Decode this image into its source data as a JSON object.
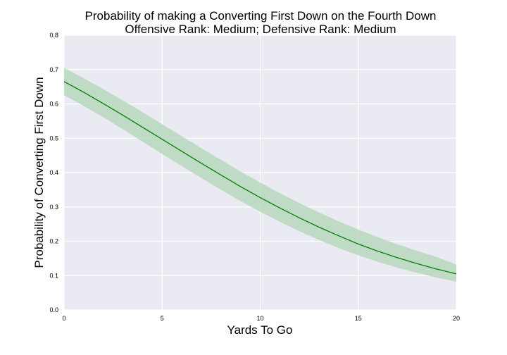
{
  "chart_data": {
    "type": "line",
    "title_lines": [
      "Probability of making a Converting First Down on the Fourth Down",
      "Offensive Rank: Medium; Defensive Rank: Medium"
    ],
    "xlabel": "Yards To Go",
    "ylabel": "Probability of Converting First Down",
    "xlim": [
      0,
      20
    ],
    "ylim": [
      0,
      0.8
    ],
    "x_ticks": [
      0,
      5,
      10,
      15,
      20
    ],
    "x_tick_labels": [
      "0",
      "5",
      "10",
      "15",
      "20"
    ],
    "y_ticks": [
      0.0,
      0.1,
      0.2,
      0.3,
      0.4,
      0.5,
      0.6,
      0.7,
      0.8
    ],
    "y_tick_labels": [
      "0.0",
      "0.1",
      "0.2",
      "0.3",
      "0.4",
      "0.5",
      "0.6",
      "0.7",
      "0.8"
    ],
    "grid": true,
    "series": [
      {
        "x": [
          0,
          1,
          2,
          3,
          4,
          5,
          6,
          7,
          8,
          9,
          10,
          11,
          12,
          13,
          14,
          15,
          16,
          17,
          18,
          19,
          20
        ],
        "y": [
          0.665,
          0.634,
          0.601,
          0.567,
          0.532,
          0.497,
          0.462,
          0.427,
          0.393,
          0.359,
          0.327,
          0.297,
          0.268,
          0.241,
          0.216,
          0.192,
          0.171,
          0.152,
          0.135,
          0.119,
          0.105
        ],
        "lower": [
          0.625,
          0.594,
          0.561,
          0.526,
          0.49,
          0.454,
          0.419,
          0.384,
          0.35,
          0.317,
          0.286,
          0.257,
          0.229,
          0.204,
          0.18,
          0.159,
          0.14,
          0.123,
          0.108,
          0.094,
          0.082
        ],
        "upper": [
          0.705,
          0.675,
          0.643,
          0.61,
          0.576,
          0.541,
          0.506,
          0.471,
          0.437,
          0.403,
          0.371,
          0.34,
          0.311,
          0.284,
          0.258,
          0.234,
          0.212,
          0.191,
          0.172,
          0.154,
          0.132
        ]
      }
    ],
    "colors": {
      "background": "#EAEAF2",
      "grid": "#FFFFFF",
      "line": "#008000",
      "band": "#B9D8BD"
    }
  }
}
